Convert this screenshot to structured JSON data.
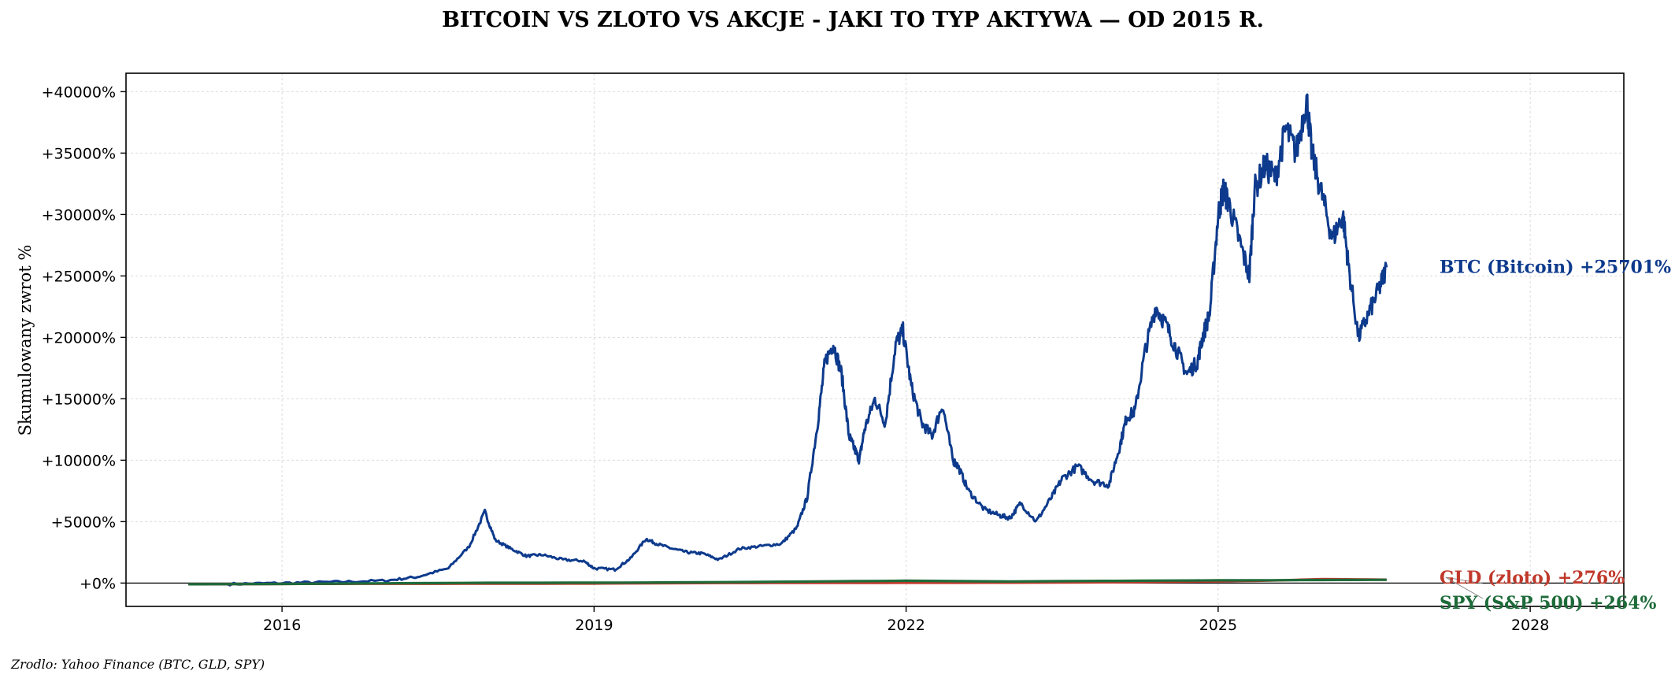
{
  "chart_data": {
    "type": "line",
    "title": "BITCOIN VS ZLOTO VS AKCJE - JAKI TO TYP AKTYWA — OD 2015 R.",
    "ylabel": "Skumulowany zwrot %",
    "xlabel": "",
    "source": "Zrodlo: Yahoo Finance (BTC, GLD, SPY)",
    "xlim": [
      2014.5,
      2028.9
    ],
    "ylim": [
      -1900,
      41500
    ],
    "x_ticks": [
      2016,
      2019,
      2022,
      2025,
      2028
    ],
    "x_tick_labels": [
      "2016",
      "2019",
      "2022",
      "2025",
      "2028"
    ],
    "y_ticks": [
      0,
      5000,
      10000,
      15000,
      20000,
      25000,
      30000,
      35000,
      40000
    ],
    "y_tick_labels": [
      "+0%",
      "+5000%",
      "+10000%",
      "+15000%",
      "+20000%",
      "+25000%",
      "+30000%",
      "+35000%",
      "+40000%"
    ],
    "grid": true,
    "zero_line": true,
    "series": [
      {
        "name": "BTC (Bitcoin)",
        "end_label": "BTC (Bitcoin)  +25701%",
        "color": "#0d3a8c",
        "x": [
          2015.1,
          2015.5,
          2016.0,
          2016.5,
          2017.0,
          2017.3,
          2017.6,
          2017.8,
          2017.95,
          2018.05,
          2018.2,
          2018.35,
          2018.5,
          2018.7,
          2018.9,
          2019.0,
          2019.2,
          2019.35,
          2019.5,
          2019.6,
          2019.75,
          2019.9,
          2020.05,
          2020.2,
          2020.4,
          2020.6,
          2020.8,
          2020.95,
          2021.05,
          2021.15,
          2021.22,
          2021.3,
          2021.38,
          2021.45,
          2021.5,
          2021.55,
          2021.6,
          2021.7,
          2021.8,
          2021.9,
          2021.97,
          2022.05,
          2022.15,
          2022.25,
          2022.35,
          2022.45,
          2022.5,
          2022.6,
          2022.75,
          2022.9,
          2023.0,
          2023.1,
          2023.25,
          2023.4,
          2023.5,
          2023.65,
          2023.8,
          2023.95,
          2024.05,
          2024.12,
          2024.2,
          2024.3,
          2024.4,
          2024.5,
          2024.6,
          2024.7,
          2024.8,
          2024.85,
          2024.92,
          2025.0,
          2025.05,
          2025.1,
          2025.2,
          2025.3,
          2025.35,
          2025.45,
          2025.55,
          2025.65,
          2025.75,
          2025.85,
          2025.9,
          2026.0,
          2026.1,
          2026.2,
          2026.25,
          2026.35,
          2026.45,
          2026.55,
          2026.62
        ],
        "values": [
          -100,
          -80,
          0,
          80,
          200,
          500,
          1200,
          3000,
          5800,
          3500,
          2800,
          2200,
          2300,
          1900,
          1800,
          1200,
          1100,
          2000,
          3600,
          3200,
          2800,
          2500,
          2400,
          1900,
          2800,
          3000,
          3200,
          4500,
          7000,
          13000,
          18000,
          19500,
          17000,
          12000,
          11000,
          10000,
          12500,
          15000,
          13000,
          19500,
          20500,
          16000,
          13000,
          12000,
          14500,
          10000,
          9500,
          7500,
          6000,
          5500,
          5300,
          6500,
          5000,
          7000,
          8500,
          9500,
          8300,
          8000,
          11000,
          13500,
          14000,
          19000,
          22500,
          21000,
          19000,
          17000,
          18000,
          20000,
          22000,
          30000,
          32000,
          31000,
          28000,
          25000,
          32000,
          34000,
          33000,
          37000,
          35000,
          39500,
          35000,
          31500,
          28000,
          30000,
          26000,
          20000,
          22000,
          24000,
          25701
        ]
      },
      {
        "name": "GLD (zloto)",
        "end_label": "GLD (zloto)  +276%",
        "color": "#c0392b",
        "x": [
          2015.1,
          2016.0,
          2017.0,
          2018.0,
          2019.0,
          2020.0,
          2021.0,
          2022.0,
          2023.0,
          2024.0,
          2025.0,
          2025.5,
          2026.0,
          2026.62
        ],
        "values": [
          -100,
          -70,
          -60,
          -55,
          -40,
          0,
          10,
          20,
          30,
          60,
          140,
          200,
          320,
          276
        ]
      },
      {
        "name": "SPY (S&P 500)",
        "end_label": "SPY (S&P 500)  +264%",
        "color": "#1e6b3a",
        "x": [
          2015.1,
          2016.0,
          2017.0,
          2018.0,
          2019.0,
          2020.0,
          2021.0,
          2022.0,
          2023.0,
          2024.0,
          2025.0,
          2025.5,
          2026.0,
          2026.62
        ],
        "values": [
          -100,
          -70,
          -20,
          20,
          30,
          60,
          120,
          190,
          130,
          180,
          220,
          230,
          250,
          264
        ]
      }
    ]
  }
}
